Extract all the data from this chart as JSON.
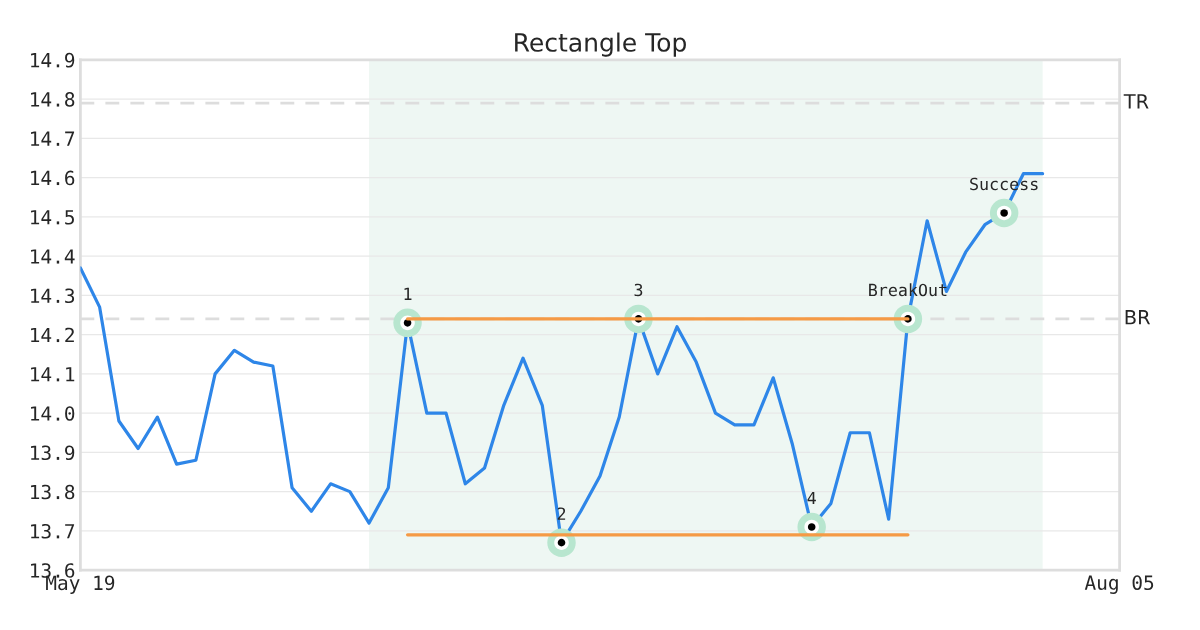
{
  "chart_data": {
    "type": "line",
    "title": "Rectangle Top",
    "categories": [
      "May 19",
      null,
      null,
      null,
      null,
      null,
      null,
      null,
      null,
      null,
      null,
      null,
      null,
      null,
      null,
      null,
      null,
      null,
      null,
      null,
      null,
      null,
      null,
      null,
      null,
      null,
      null,
      null,
      null,
      null,
      null,
      null,
      null,
      null,
      null,
      null,
      null,
      null,
      null,
      null,
      null,
      null,
      null,
      null,
      null,
      null,
      null,
      null,
      null,
      null,
      null,
      null,
      null,
      null,
      "Aug 05"
    ],
    "series": [
      {
        "color": "#2e86e8",
        "values": [
          14.37,
          14.27,
          13.98,
          13.91,
          13.99,
          13.87,
          13.88,
          14.1,
          14.16,
          14.13,
          14.12,
          13.81,
          13.75,
          13.82,
          13.8,
          13.72,
          13.81,
          14.23,
          14.0,
          14.0,
          13.82,
          13.86,
          14.02,
          14.14,
          14.02,
          13.67,
          13.75,
          13.84,
          13.99,
          14.24,
          14.1,
          14.22,
          14.13,
          14.0,
          13.97,
          13.97,
          14.09,
          13.92,
          13.71,
          13.77,
          13.95,
          13.95,
          13.73,
          14.24,
          14.49,
          14.31,
          14.41,
          14.48,
          14.51,
          14.61,
          14.61,
          null,
          null,
          null,
          null
        ]
      },
      {
        "color": "#f59a45",
        "values": [
          null,
          null,
          null,
          null,
          null,
          null,
          null,
          null,
          null,
          null,
          null,
          null,
          null,
          null,
          null,
          null,
          null,
          14.24,
          null,
          null,
          null,
          null,
          null,
          null,
          null,
          null,
          null,
          null,
          null,
          null,
          null,
          null,
          null,
          null,
          null,
          null,
          null,
          null,
          null,
          null,
          null,
          null,
          null,
          14.24,
          null,
          null,
          null,
          null,
          null,
          null,
          null,
          null,
          null,
          null,
          null
        ]
      },
      {
        "color": "#f59a45",
        "values": [
          null,
          null,
          null,
          null,
          null,
          null,
          null,
          null,
          null,
          null,
          null,
          null,
          null,
          null,
          null,
          null,
          null,
          13.69,
          null,
          null,
          null,
          null,
          null,
          null,
          null,
          null,
          null,
          null,
          null,
          null,
          null,
          null,
          null,
          null,
          null,
          null,
          null,
          null,
          null,
          null,
          null,
          null,
          null,
          13.69,
          null,
          null,
          null,
          null,
          null,
          null,
          null,
          null,
          null,
          null,
          null
        ]
      },
      {
        "type": "scatter",
        "color": "#000000",
        "values": [
          null,
          null,
          null,
          null,
          null,
          null,
          null,
          null,
          null,
          null,
          null,
          null,
          null,
          null,
          null,
          null,
          null,
          14.23,
          null,
          null,
          null,
          null,
          null,
          null,
          null,
          13.67,
          null,
          null,
          null,
          14.24,
          null,
          null,
          null,
          null,
          null,
          null,
          null,
          null,
          13.71,
          null,
          null,
          null,
          null,
          14.24,
          null,
          null,
          null,
          null,
          14.51,
          null,
          null,
          null,
          null,
          null,
          null
        ]
      }
    ],
    "annotations": [
      "1",
      "2",
      "3",
      "4",
      "BreakOut",
      "Success"
    ],
    "ylim": [
      13.6,
      14.9
    ],
    "yticks": [
      13.6,
      13.7,
      13.8,
      13.9,
      {
        "value": 14.0,
        "label": "14.0"
      },
      14.1,
      14.2,
      14.3,
      14.4,
      14.5,
      14.6,
      14.7,
      14.8,
      14.9
    ],
    "ref_lines": [
      {
        "axis": "y",
        "value": 14.79,
        "label": "TR",
        "color": "#dddddd",
        "line_style": "dashed"
      },
      {
        "axis": "y",
        "value": 14.24,
        "label": "BR",
        "color": "#dddddd",
        "line_style": "dashed"
      }
    ],
    "grid": "y",
    "legend": false
  }
}
